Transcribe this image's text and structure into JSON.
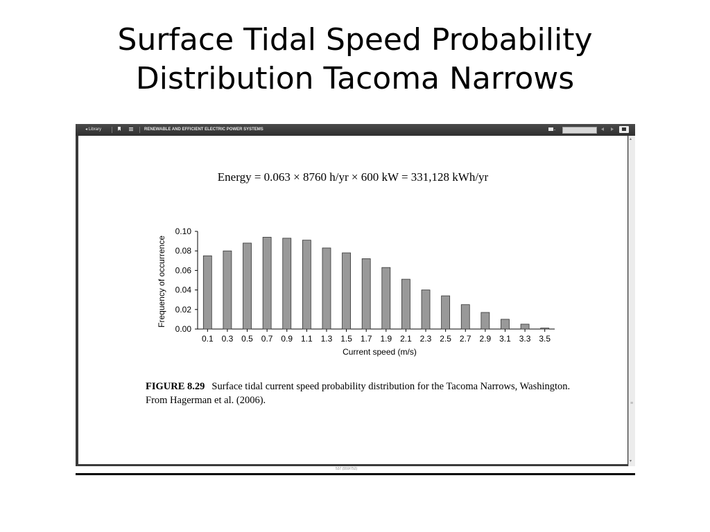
{
  "slide": {
    "title_line1": "Surface Tidal Speed Probability",
    "title_line2": "Distribution Tacoma Narrows"
  },
  "toolbar": {
    "library_label": "◂ Library",
    "book_title": "RENEWABLE AND EFFICIENT ELECTRIC POWER SYSTEMS",
    "icons": [
      "bookmark-icon",
      "toc-icon",
      "print-icon",
      "prev-icon",
      "next-icon",
      "display-icon"
    ]
  },
  "page": {
    "equation": "Energy = 0.063 × 8760 h/yr × 600 kW = 331,128 kWh/yr",
    "caption_label": "FIGURE 8.29",
    "caption_text": "Surface tidal current speed probability distribution for the Tacoma Narrows, Washington. From Hagerman et al. (2006).",
    "page_indicator": "537 (559/752)"
  },
  "chart_data": {
    "type": "bar",
    "categories": [
      "0.1",
      "0.3",
      "0.5",
      "0.7",
      "0.9",
      "1.1",
      "1.3",
      "1.5",
      "1.7",
      "1.9",
      "2.1",
      "2.3",
      "2.5",
      "2.7",
      "2.9",
      "3.1",
      "3.3",
      "3.5"
    ],
    "values": [
      0.075,
      0.08,
      0.088,
      0.094,
      0.093,
      0.091,
      0.083,
      0.078,
      0.072,
      0.063,
      0.051,
      0.04,
      0.034,
      0.025,
      0.017,
      0.01,
      0.005,
      0.001
    ],
    "xlabel": "Current speed (m/s)",
    "ylabel": "Frequency of occurrence",
    "ylim": [
      0,
      0.1
    ],
    "yticks": [
      "0.00",
      "0.02",
      "0.04",
      "0.06",
      "0.08",
      "0.10"
    ],
    "bar_color": "#999999",
    "grid": false
  }
}
